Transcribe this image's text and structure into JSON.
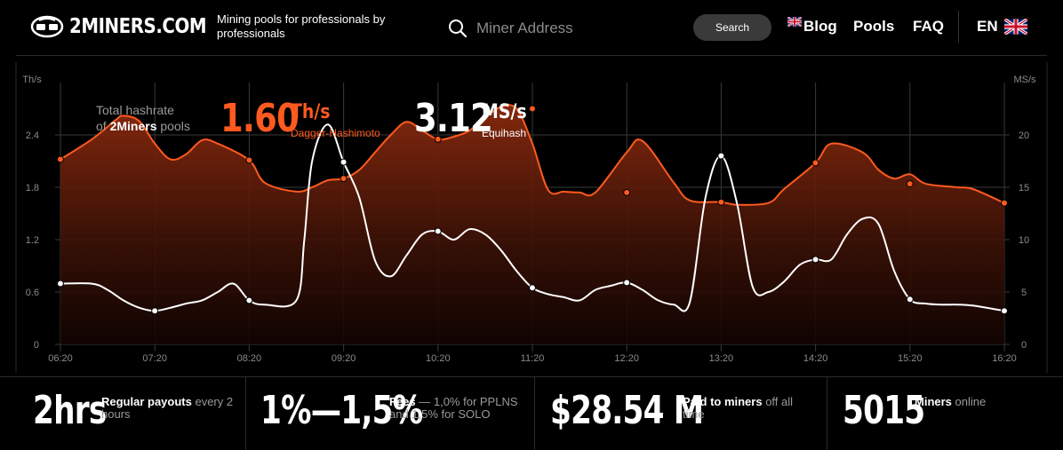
{
  "header": {
    "logo_text": "2MINERS.COM",
    "tagline": "Mining pools for professionals by professionals",
    "search": {
      "placeholder": "Miner Address",
      "value": "",
      "button_label": "Search"
    },
    "nav": {
      "blog": "Blog",
      "pools": "Pools",
      "faq": "FAQ"
    },
    "language": "EN"
  },
  "summary": {
    "total_label_line1": "Total hashrate",
    "total_label_of": "of ",
    "total_label_brand": "2Miners",
    "total_label_end": " pools",
    "dagger_value": "1.60",
    "dagger_unit": "Th/s",
    "dagger_algo": "Dagger-Hashimoto",
    "equihash_value": "3.12",
    "equihash_unit": "MS/s",
    "equihash_algo": "Equihash"
  },
  "chart_data": {
    "type": "line",
    "left_axis_unit": "Th/s",
    "right_axis_unit": "MS/s",
    "x_ticks": [
      "06:20",
      "07:20",
      "08:20",
      "09:20",
      "10:20",
      "11:20",
      "12:20",
      "13:20",
      "14:20",
      "15:20",
      "16:20"
    ],
    "left_ticks": [
      "0",
      "0.6",
      "1.2",
      "1.8",
      "2.4"
    ],
    "right_ticks": [
      "0",
      "5",
      "10",
      "15",
      "20"
    ],
    "left_range": [
      0,
      3.0
    ],
    "right_range": [
      0,
      25
    ],
    "grid": true,
    "series": [
      {
        "name": "Dagger-Hashimoto",
        "axis": "left",
        "color": "#ff5a1f",
        "x": [
          6.333,
          6.667,
          6.917,
          7.0,
          7.167,
          7.333,
          7.5,
          7.667,
          7.833,
          8.0,
          8.333,
          8.5,
          8.833,
          9.0,
          9.167,
          9.333,
          9.5,
          9.667,
          9.833,
          10.0,
          10.167,
          10.333,
          10.5,
          10.667,
          10.833,
          11.0,
          11.167,
          11.333,
          11.5,
          11.667,
          11.833,
          12.0,
          12.333,
          12.5,
          12.833,
          13.0,
          13.333,
          13.5,
          13.833,
          14.0,
          14.333,
          14.5,
          14.833,
          15.0,
          15.167,
          15.333,
          15.5,
          15.833,
          16.0,
          16.333
        ],
        "y": [
          2.12,
          2.35,
          2.57,
          2.62,
          2.56,
          2.3,
          2.12,
          2.18,
          2.34,
          2.3,
          2.11,
          1.85,
          1.75,
          1.8,
          1.88,
          1.9,
          2.0,
          2.2,
          2.4,
          2.55,
          2.45,
          2.35,
          2.38,
          2.45,
          2.6,
          2.72,
          2.7,
          2.3,
          1.77,
          1.75,
          1.74,
          1.74,
          2.2,
          2.33,
          1.85,
          1.65,
          1.63,
          1.6,
          1.62,
          1.78,
          2.08,
          2.3,
          2.2,
          2.0,
          1.9,
          1.95,
          1.84,
          1.8,
          1.78,
          1.62
        ],
        "markers_x": [
          6.333,
          8.333,
          9.333,
          10.333,
          11.333,
          12.333,
          13.333,
          14.333,
          15.333,
          16.333
        ],
        "markers_y": [
          2.12,
          2.11,
          1.9,
          2.35,
          2.7,
          1.74,
          1.63,
          2.08,
          1.84,
          1.62
        ]
      },
      {
        "name": "Equihash",
        "axis": "right",
        "color": "#ffffff",
        "x": [
          6.333,
          6.667,
          6.833,
          7.0,
          7.167,
          7.333,
          7.5,
          7.667,
          7.833,
          8.0,
          8.167,
          8.333,
          8.5,
          8.833,
          8.917,
          9.0,
          9.167,
          9.333,
          9.5,
          9.667,
          9.833,
          10.0,
          10.167,
          10.333,
          10.5,
          10.667,
          10.833,
          11.0,
          11.167,
          11.333,
          11.5,
          11.667,
          11.833,
          12.0,
          12.167,
          12.333,
          12.5,
          12.667,
          12.833,
          13.0,
          13.167,
          13.333,
          13.5,
          13.667,
          13.833,
          14.0,
          14.167,
          14.333,
          14.5,
          14.667,
          14.833,
          15.0,
          15.167,
          15.333,
          15.5,
          15.667,
          15.833,
          16.0,
          16.333
        ],
        "y": [
          5.8,
          5.8,
          5.2,
          4.2,
          3.5,
          3.2,
          3.5,
          3.9,
          4.2,
          5.0,
          5.8,
          4.2,
          3.8,
          4.2,
          10.0,
          17.5,
          21.0,
          17.4,
          14.0,
          8.0,
          6.5,
          8.5,
          10.5,
          10.8,
          10.0,
          11.0,
          10.5,
          9.0,
          7.0,
          5.4,
          4.8,
          4.5,
          4.2,
          5.2,
          5.6,
          5.9,
          5.2,
          4.2,
          3.8,
          4.0,
          14.0,
          18.0,
          13.5,
          5.5,
          5.0,
          6.0,
          7.6,
          8.1,
          8.1,
          10.5,
          12.0,
          11.5,
          7.0,
          4.3,
          3.9,
          3.8,
          3.8,
          3.7,
          3.2
        ],
        "markers_x": [
          6.333,
          7.333,
          8.333,
          9.333,
          10.333,
          11.333,
          12.333,
          13.333,
          14.333,
          15.333,
          16.333
        ],
        "markers_y": [
          5.8,
          3.2,
          4.2,
          17.4,
          10.8,
          5.4,
          5.9,
          18.0,
          8.1,
          4.3,
          3.2
        ]
      }
    ]
  },
  "stats": [
    {
      "number": "2hrs",
      "title": "Regular payouts",
      "desc": " every 2 hours"
    },
    {
      "number": "1%—1,5%",
      "title": "Fees",
      "desc": " — 1,0% for PPLNS and 1,5% for SOLO"
    },
    {
      "number": "$28.54 M",
      "title": "Paid to miners",
      "desc": " off all time"
    },
    {
      "number": "5015",
      "title": "Miners",
      "desc": " online"
    }
  ]
}
